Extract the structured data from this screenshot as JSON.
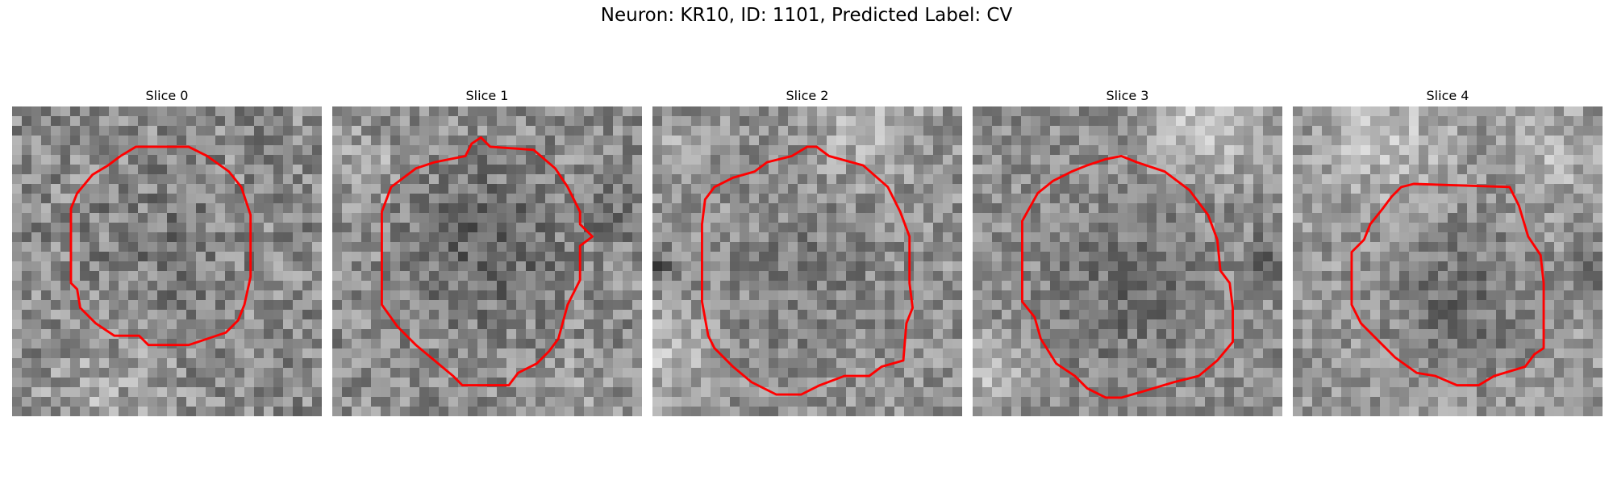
{
  "figure": {
    "title": "Neuron: KR10, ID: 1101, Predicted Label: CV"
  },
  "panels": [
    {
      "title": "Slice 0",
      "bg_seed": 11,
      "base": 138,
      "contrast": 48,
      "dark_blobs": [
        [
          0.48,
          0.45,
          0.32,
          20
        ]
      ],
      "light_blobs": [
        [
          0.3,
          0.95,
          0.35,
          28
        ]
      ],
      "contour": [
        [
          0.4,
          0.13
        ],
        [
          0.57,
          0.13
        ],
        [
          0.63,
          0.16
        ],
        [
          0.7,
          0.21
        ],
        [
          0.74,
          0.26
        ],
        [
          0.77,
          0.35
        ],
        [
          0.77,
          0.55
        ],
        [
          0.75,
          0.64
        ],
        [
          0.73,
          0.69
        ],
        [
          0.69,
          0.73
        ],
        [
          0.6,
          0.76
        ],
        [
          0.57,
          0.77
        ],
        [
          0.44,
          0.77
        ],
        [
          0.41,
          0.74
        ],
        [
          0.33,
          0.74
        ],
        [
          0.27,
          0.7
        ],
        [
          0.22,
          0.65
        ],
        [
          0.21,
          0.59
        ],
        [
          0.19,
          0.57
        ],
        [
          0.19,
          0.33
        ],
        [
          0.21,
          0.28
        ],
        [
          0.26,
          0.22
        ],
        [
          0.31,
          0.19
        ],
        [
          0.35,
          0.16
        ]
      ]
    },
    {
      "title": "Slice 1",
      "bg_seed": 23,
      "base": 140,
      "contrast": 45,
      "dark_blobs": [
        [
          0.5,
          0.45,
          0.36,
          45
        ],
        [
          0.9,
          0.35,
          0.15,
          25
        ]
      ],
      "light_blobs": [
        [
          0.1,
          0.2,
          0.18,
          30
        ],
        [
          0.8,
          0.9,
          0.2,
          20
        ]
      ],
      "contour": [
        [
          0.45,
          0.12
        ],
        [
          0.48,
          0.1
        ],
        [
          0.51,
          0.13
        ],
        [
          0.65,
          0.14
        ],
        [
          0.72,
          0.2
        ],
        [
          0.76,
          0.26
        ],
        [
          0.8,
          0.34
        ],
        [
          0.8,
          0.38
        ],
        [
          0.84,
          0.42
        ],
        [
          0.8,
          0.45
        ],
        [
          0.8,
          0.56
        ],
        [
          0.76,
          0.64
        ],
        [
          0.73,
          0.75
        ],
        [
          0.7,
          0.79
        ],
        [
          0.66,
          0.83
        ],
        [
          0.6,
          0.86
        ],
        [
          0.57,
          0.9
        ],
        [
          0.42,
          0.9
        ],
        [
          0.39,
          0.87
        ],
        [
          0.33,
          0.82
        ],
        [
          0.27,
          0.77
        ],
        [
          0.21,
          0.71
        ],
        [
          0.16,
          0.64
        ],
        [
          0.16,
          0.34
        ],
        [
          0.19,
          0.26
        ],
        [
          0.23,
          0.23
        ],
        [
          0.27,
          0.2
        ],
        [
          0.33,
          0.18
        ],
        [
          0.43,
          0.16
        ]
      ]
    },
    {
      "title": "Slice 2",
      "bg_seed": 37,
      "base": 145,
      "contrast": 42,
      "dark_blobs": [
        [
          0.5,
          0.55,
          0.36,
          25
        ],
        [
          0.02,
          0.52,
          0.08,
          60
        ]
      ],
      "light_blobs": [
        [
          0.7,
          0.05,
          0.25,
          40
        ],
        [
          0.05,
          0.8,
          0.2,
          45
        ],
        [
          0.05,
          0.15,
          0.12,
          35
        ]
      ],
      "contour": [
        [
          0.53,
          0.13
        ],
        [
          0.57,
          0.16
        ],
        [
          0.68,
          0.19
        ],
        [
          0.76,
          0.26
        ],
        [
          0.8,
          0.34
        ],
        [
          0.83,
          0.42
        ],
        [
          0.83,
          0.57
        ],
        [
          0.84,
          0.65
        ],
        [
          0.82,
          0.7
        ],
        [
          0.81,
          0.82
        ],
        [
          0.74,
          0.84
        ],
        [
          0.7,
          0.87
        ],
        [
          0.62,
          0.87
        ],
        [
          0.54,
          0.9
        ],
        [
          0.48,
          0.93
        ],
        [
          0.4,
          0.93
        ],
        [
          0.32,
          0.89
        ],
        [
          0.26,
          0.84
        ],
        [
          0.2,
          0.78
        ],
        [
          0.18,
          0.74
        ],
        [
          0.16,
          0.63
        ],
        [
          0.16,
          0.38
        ],
        [
          0.17,
          0.3
        ],
        [
          0.2,
          0.26
        ],
        [
          0.26,
          0.23
        ],
        [
          0.33,
          0.21
        ],
        [
          0.37,
          0.18
        ],
        [
          0.45,
          0.16
        ],
        [
          0.5,
          0.13
        ]
      ]
    },
    {
      "title": "Slice 3",
      "bg_seed": 53,
      "base": 140,
      "contrast": 40,
      "dark_blobs": [
        [
          0.5,
          0.6,
          0.34,
          35
        ],
        [
          0.95,
          0.5,
          0.12,
          45
        ]
      ],
      "light_blobs": [
        [
          0.75,
          0.05,
          0.28,
          70
        ],
        [
          0.05,
          0.85,
          0.18,
          60
        ]
      ],
      "contour": [
        [
          0.43,
          0.17
        ],
        [
          0.48,
          0.16
        ],
        [
          0.53,
          0.18
        ],
        [
          0.62,
          0.21
        ],
        [
          0.7,
          0.27
        ],
        [
          0.76,
          0.35
        ],
        [
          0.79,
          0.43
        ],
        [
          0.8,
          0.53
        ],
        [
          0.83,
          0.57
        ],
        [
          0.84,
          0.65
        ],
        [
          0.84,
          0.76
        ],
        [
          0.79,
          0.82
        ],
        [
          0.73,
          0.87
        ],
        [
          0.65,
          0.89
        ],
        [
          0.55,
          0.92
        ],
        [
          0.48,
          0.94
        ],
        [
          0.43,
          0.94
        ],
        [
          0.37,
          0.91
        ],
        [
          0.33,
          0.87
        ],
        [
          0.27,
          0.83
        ],
        [
          0.22,
          0.75
        ],
        [
          0.2,
          0.68
        ],
        [
          0.16,
          0.63
        ],
        [
          0.16,
          0.37
        ],
        [
          0.21,
          0.28
        ],
        [
          0.26,
          0.24
        ],
        [
          0.32,
          0.21
        ],
        [
          0.37,
          0.19
        ]
      ]
    },
    {
      "title": "Slice 4",
      "bg_seed": 71,
      "base": 150,
      "contrast": 40,
      "dark_blobs": [
        [
          0.55,
          0.62,
          0.34,
          45
        ],
        [
          0.95,
          0.55,
          0.15,
          40
        ]
      ],
      "light_blobs": [
        [
          0.3,
          0.1,
          0.3,
          45
        ],
        [
          0.85,
          0.15,
          0.2,
          40
        ]
      ],
      "contour": [
        [
          0.35,
          0.26
        ],
        [
          0.39,
          0.25
        ],
        [
          0.7,
          0.26
        ],
        [
          0.73,
          0.32
        ],
        [
          0.76,
          0.42
        ],
        [
          0.8,
          0.48
        ],
        [
          0.81,
          0.57
        ],
        [
          0.81,
          0.78
        ],
        [
          0.78,
          0.8
        ],
        [
          0.75,
          0.84
        ],
        [
          0.65,
          0.87
        ],
        [
          0.6,
          0.9
        ],
        [
          0.53,
          0.9
        ],
        [
          0.46,
          0.87
        ],
        [
          0.4,
          0.86
        ],
        [
          0.33,
          0.81
        ],
        [
          0.29,
          0.77
        ],
        [
          0.22,
          0.7
        ],
        [
          0.19,
          0.64
        ],
        [
          0.19,
          0.47
        ],
        [
          0.23,
          0.43
        ],
        [
          0.25,
          0.38
        ],
        [
          0.29,
          0.33
        ],
        [
          0.32,
          0.29
        ]
      ]
    }
  ]
}
